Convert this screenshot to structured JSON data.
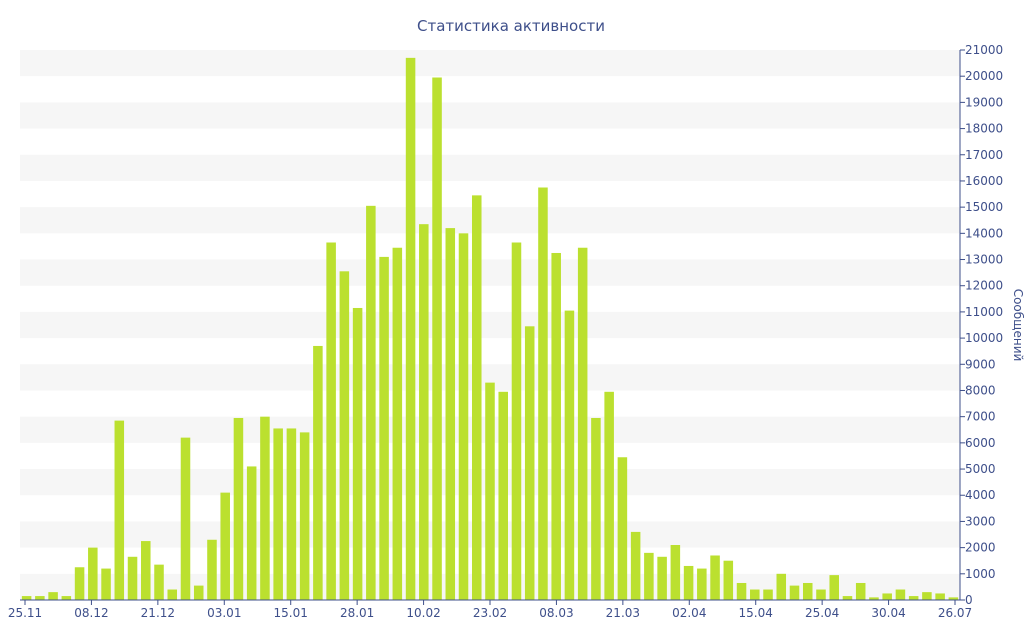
{
  "chart_data": {
    "type": "bar",
    "title": "Статистика активности",
    "xlabel": "",
    "ylabel": "Сообщений",
    "y_axis_side": "right",
    "ylim": [
      0,
      21000
    ],
    "y_ticks": [
      0,
      1000,
      2000,
      3000,
      4000,
      5000,
      6000,
      7000,
      8000,
      9000,
      10000,
      11000,
      12000,
      13000,
      14000,
      15000,
      16000,
      17000,
      18000,
      19000,
      20000,
      21000
    ],
    "x_tick_labels": [
      "25.11",
      "08.12",
      "21.12",
      "03.01",
      "15.01",
      "28.01",
      "10.02",
      "23.02",
      "08.03",
      "21.03",
      "02.04",
      "15.04",
      "25.04",
      "30.04",
      "26.07"
    ],
    "grid": true,
    "colors": {
      "bar": "#bbe02f",
      "band": "#f6f6f6",
      "axis": "#3e4f8a",
      "text": "#3e4f8a"
    },
    "values": [
      150,
      150,
      300,
      150,
      1250,
      2000,
      1200,
      6850,
      1650,
      2250,
      1350,
      400,
      6200,
      550,
      2300,
      4100,
      6950,
      5100,
      7000,
      6550,
      6550,
      6400,
      9700,
      13650,
      12550,
      11150,
      15050,
      13100,
      13450,
      20700,
      14350,
      19950,
      14200,
      14000,
      15450,
      8300,
      7950,
      13650,
      10450,
      15750,
      13250,
      11050,
      13450,
      6950,
      7950,
      5450,
      2600,
      1800,
      1650,
      2100,
      1300,
      1200,
      1700,
      1500,
      650,
      400,
      400,
      1000,
      550,
      650,
      400,
      950,
      150,
      650,
      100,
      250,
      400,
      150,
      300,
      250,
      100
    ]
  }
}
